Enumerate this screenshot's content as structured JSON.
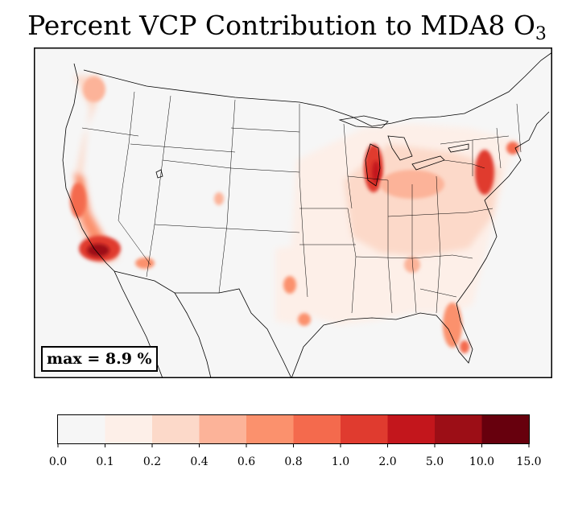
{
  "title": {
    "text": "Percent VCP Contribution to MDA8 O",
    "subscript": "3"
  },
  "annotation": {
    "max_label": "max = 8.9 %"
  },
  "colorbar": {
    "ticks": [
      "0.0",
      "0.1",
      "0.2",
      "0.4",
      "0.6",
      "0.8",
      "1.0",
      "2.0",
      "5.0",
      "10.0",
      "15.0"
    ],
    "colors": [
      "#f6f6f6",
      "#fdefe8",
      "#fcd9c9",
      "#fcb399",
      "#fb916d",
      "#f46a4d",
      "#e03b2f",
      "#c3161c",
      "#9c0e16",
      "#67000d"
    ]
  },
  "map": {
    "background": "#f6f6f6",
    "region": "United States",
    "hotspots": [
      {
        "area": "Southern California (Los Angeles)",
        "level": "5.0-10.0"
      },
      {
        "area": "Lake Michigan / Chicago",
        "level": "2.0-5.0"
      },
      {
        "area": "New York City / Northeast corridor",
        "level": "2.0-5.0"
      },
      {
        "area": "San Francisco Bay Area",
        "level": "1.0-2.0"
      },
      {
        "area": "Seattle",
        "level": "0.6-0.8"
      },
      {
        "area": "Phoenix",
        "level": "0.6-0.8"
      },
      {
        "area": "Denver",
        "level": "0.4-0.6"
      },
      {
        "area": "Dallas",
        "level": "0.6-0.8"
      },
      {
        "area": "Houston",
        "level": "0.6-0.8"
      },
      {
        "area": "South Florida (Miami)",
        "level": "0.8-1.0"
      },
      {
        "area": "Ohio Valley",
        "level": "0.4-0.8"
      },
      {
        "area": "Atlanta",
        "level": "0.4-0.6"
      }
    ]
  }
}
